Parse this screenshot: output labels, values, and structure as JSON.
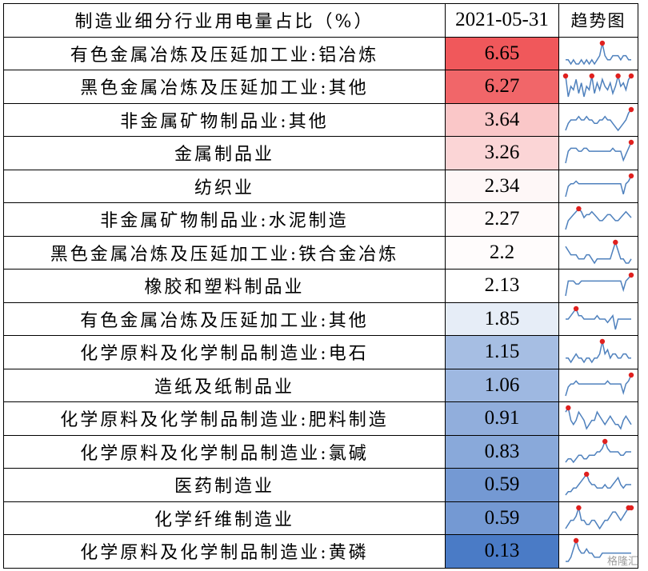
{
  "chart_data": {
    "type": "table",
    "columns": [
      "制造业细分行业用电量占比（%）",
      "2021-05-31",
      "趋势图"
    ],
    "rows": [
      {
        "name": "有色金属冶炼及压延加工业:铝冶炼",
        "value": "6.65",
        "trend": [
          5,
          5,
          4,
          5,
          4,
          4,
          5,
          4,
          5,
          4,
          5,
          4,
          5,
          6,
          9,
          6,
          5,
          5,
          6,
          6,
          6,
          5,
          6,
          6,
          5,
          5
        ]
      },
      {
        "name": "黑色金属冶炼及压延加工业:其他",
        "value": "6.27",
        "trend": [
          9,
          3,
          6,
          5,
          8,
          4,
          7,
          3,
          6,
          5,
          9,
          4,
          7,
          5,
          8,
          6,
          5,
          7,
          4,
          6,
          9,
          6,
          7,
          5,
          8,
          9
        ]
      },
      {
        "name": "非金属矿物制品业:其他",
        "value": "3.64",
        "trend": [
          3,
          5,
          6,
          6,
          6,
          7,
          6,
          6,
          7,
          6,
          6,
          5,
          5,
          6,
          6,
          7,
          6,
          6,
          5,
          4,
          3,
          4,
          5,
          6,
          8,
          9
        ]
      },
      {
        "name": "金属制品业",
        "value": "3.26",
        "trend": [
          2,
          6,
          7,
          7,
          7,
          6,
          6,
          7,
          7,
          6,
          6,
          6,
          6,
          6,
          6,
          6,
          6,
          6,
          7,
          6,
          6,
          6,
          3,
          5,
          7,
          9
        ]
      },
      {
        "name": "纺织业",
        "value": "2.34",
        "trend": [
          1,
          5,
          6,
          6,
          7,
          6,
          6,
          6,
          6,
          6,
          6,
          6,
          6,
          6,
          6,
          6,
          6,
          6,
          6,
          6,
          6,
          6,
          2,
          6,
          7,
          9
        ]
      },
      {
        "name": "非金属矿物制品业:水泥制造",
        "value": "2.27",
        "trend": [
          2,
          5,
          6,
          7,
          8,
          9,
          8,
          6,
          7,
          7,
          8,
          7,
          6,
          5,
          5,
          6,
          7,
          7,
          6,
          5,
          5,
          6,
          7,
          8,
          7,
          6
        ]
      },
      {
        "name": "黑色金属冶炼及压延加工业:铁合金冶炼",
        "value": "2.2",
        "trend": [
          8,
          7,
          6,
          6,
          6,
          5,
          5,
          5,
          6,
          6,
          5,
          4,
          5,
          5,
          5,
          5,
          5,
          5,
          7,
          9,
          7,
          5,
          5,
          4,
          4,
          5
        ]
      },
      {
        "name": "橡胶和塑料制品业",
        "value": "2.13",
        "trend": [
          2,
          7,
          7,
          7,
          6,
          6,
          7,
          7,
          7,
          7,
          7,
          7,
          7,
          7,
          7,
          7,
          7,
          7,
          7,
          7,
          7,
          7,
          4,
          7,
          8,
          9
        ]
      },
      {
        "name": "有色金属冶炼及压延加工业:其他",
        "value": "1.85",
        "trend": [
          6,
          6,
          7,
          8,
          9,
          7,
          7,
          6,
          6,
          6,
          6,
          6,
          7,
          6,
          6,
          6,
          5,
          6,
          7,
          3,
          6,
          6,
          6,
          6,
          6,
          6
        ]
      },
      {
        "name": "化学原料及化学制品制造业:电石",
        "value": "1.15",
        "trend": [
          5,
          5,
          4,
          5,
          6,
          5,
          5,
          4,
          5,
          5,
          4,
          5,
          5,
          6,
          9,
          6,
          7,
          5,
          6,
          6,
          5,
          5,
          6,
          6,
          5,
          5
        ]
      },
      {
        "name": "造纸及纸制品业",
        "value": "1.06",
        "trend": [
          2,
          5,
          6,
          6,
          7,
          6,
          6,
          6,
          6,
          6,
          6,
          6,
          6,
          6,
          6,
          6,
          7,
          6,
          6,
          6,
          6,
          6,
          3,
          6,
          7,
          9
        ]
      },
      {
        "name": "化学原料及化学制品制造业:肥料制造",
        "value": "0.91",
        "trend": [
          8,
          9,
          6,
          5,
          6,
          8,
          7,
          6,
          4,
          5,
          6,
          6,
          8,
          7,
          6,
          5,
          6,
          7,
          6,
          5,
          5,
          4,
          6,
          7,
          6,
          5
        ]
      },
      {
        "name": "化学原料及化学制品制造业:氯碱",
        "value": "0.83",
        "trend": [
          3,
          4,
          4,
          3,
          4,
          5,
          5,
          4,
          4,
          5,
          5,
          5,
          6,
          6,
          7,
          9,
          7,
          6,
          6,
          6,
          6,
          5,
          5,
          6,
          6,
          6
        ]
      },
      {
        "name": "医药制造业",
        "value": "0.59",
        "trend": [
          3,
          4,
          4,
          5,
          5,
          6,
          7,
          8,
          9,
          7,
          6,
          6,
          5,
          5,
          5,
          6,
          5,
          5,
          6,
          7,
          8,
          6,
          5,
          6,
          6,
          6
        ]
      },
      {
        "name": "化学纤维制造业",
        "value": "0.59",
        "trend": [
          4,
          5,
          6,
          6,
          7,
          9,
          6,
          6,
          5,
          5,
          6,
          6,
          5,
          4,
          5,
          6,
          6,
          7,
          8,
          8,
          7,
          6,
          7,
          8,
          9,
          9
        ]
      },
      {
        "name": "化学原料及化学制品制造业:黄磷",
        "value": "0.13",
        "trend": [
          4,
          4,
          5,
          7,
          9,
          7,
          6,
          6,
          7,
          6,
          6,
          5,
          5,
          5,
          6,
          6,
          6,
          6,
          6,
          6,
          6,
          6,
          6,
          6,
          6,
          6
        ]
      }
    ],
    "color_scale": {
      "high": "#f0585b",
      "mid": "#ffffff",
      "low": "#4a7bc6"
    }
  },
  "watermark": "格隆汇"
}
